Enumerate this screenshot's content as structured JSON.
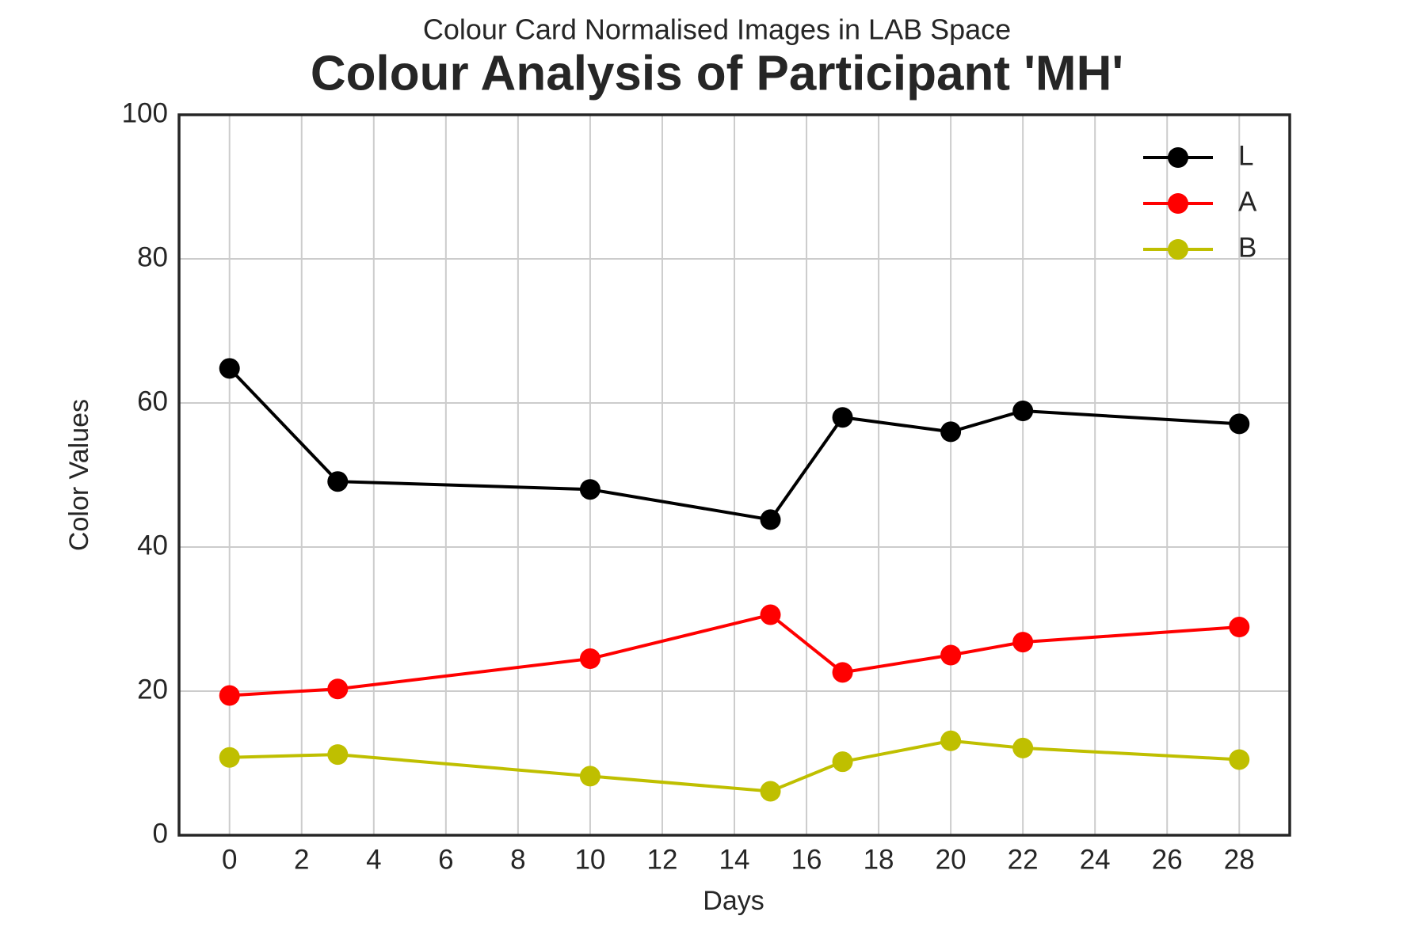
{
  "chart_data": {
    "type": "line",
    "subtitle": "Colour Card Normalised Images in LAB Space",
    "title": "Colour Analysis of Participant 'MH'",
    "x_label": "Days",
    "y_label": "Color Values",
    "x": [
      0,
      3,
      10,
      15,
      17,
      20,
      22,
      28
    ],
    "series": [
      {
        "name": "L",
        "color": "#000000",
        "values": [
          64.8,
          49.1,
          48.0,
          43.8,
          58.0,
          56.0,
          58.9,
          57.1
        ]
      },
      {
        "name": "A",
        "color": "#ff0000",
        "values": [
          19.4,
          20.3,
          24.5,
          30.6,
          22.6,
          25.0,
          26.8,
          28.9
        ]
      },
      {
        "name": "B",
        "color": "#bfbf00",
        "values": [
          10.8,
          11.2,
          8.2,
          6.1,
          10.2,
          13.1,
          12.1,
          10.5
        ]
      }
    ],
    "xlim": [
      -1.4,
      29.4
    ],
    "ylim": [
      0,
      100
    ],
    "xticks": [
      0,
      2,
      4,
      6,
      8,
      10,
      12,
      14,
      16,
      18,
      20,
      22,
      24,
      26,
      28
    ],
    "yticks": [
      0,
      20,
      40,
      60,
      80,
      100
    ],
    "grid": true,
    "legend": "upper right"
  }
}
